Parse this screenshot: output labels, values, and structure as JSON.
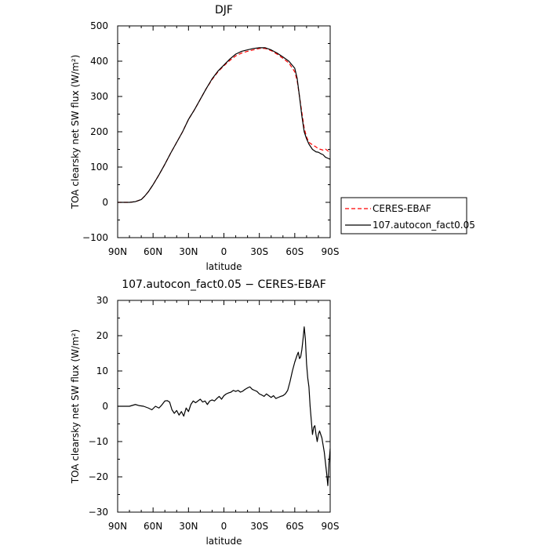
{
  "chart_data": [
    {
      "type": "line",
      "title": "DJF",
      "xlabel": "latitude",
      "ylabel": "TOA clearsky net SW flux (W/m²)",
      "xlim": [
        90,
        -90
      ],
      "ylim": [
        -100,
        500
      ],
      "xticks": [
        90,
        60,
        30,
        0,
        -30,
        -60,
        -90
      ],
      "xtick_labels": [
        "90N",
        "60N",
        "30N",
        "0",
        "30S",
        "60S",
        "90S"
      ],
      "yticks": [
        -100,
        0,
        100,
        200,
        300,
        400,
        500
      ],
      "ytick_labels": [
        "−100",
        "0",
        "100",
        "200",
        "300",
        "400",
        "500"
      ],
      "legend": {
        "placement": "right",
        "entries": [
          {
            "label": "CERES-EBAF",
            "color": "#ff0000",
            "dash": "dashed"
          },
          {
            "label": "107.autocon_fact0.05",
            "color": "#000000",
            "dash": "solid"
          }
        ]
      },
      "series": [
        {
          "name": "CERES-EBAF",
          "color": "#ff0000",
          "dash": "dashed",
          "x": [
            90,
            80,
            75,
            70,
            67,
            64,
            60,
            55,
            50,
            45,
            40,
            35,
            30,
            25,
            20,
            15,
            10,
            5,
            0,
            -5,
            -10,
            -15,
            -20,
            -25,
            -30,
            -35,
            -40,
            -45,
            -50,
            -55,
            -60,
            -62,
            -64,
            -66,
            -68,
            -70,
            -72,
            -75,
            -78,
            -80,
            -82,
            -84,
            -86,
            -88,
            -90
          ],
          "y": [
            0,
            0,
            2,
            8,
            18,
            30,
            50,
            78,
            108,
            140,
            170,
            200,
            235,
            262,
            292,
            322,
            348,
            370,
            387,
            402,
            415,
            423,
            428,
            432,
            436,
            436,
            430,
            420,
            408,
            395,
            370,
            345,
            300,
            255,
            210,
            185,
            170,
            163,
            157,
            152,
            150,
            148,
            151,
            146,
            140
          ]
        },
        {
          "name": "107.autocon_fact0.05",
          "color": "#000000",
          "dash": "solid",
          "x": [
            90,
            80,
            75,
            70,
            67,
            64,
            60,
            55,
            50,
            45,
            40,
            35,
            30,
            25,
            20,
            15,
            10,
            5,
            0,
            -5,
            -10,
            -15,
            -20,
            -25,
            -30,
            -35,
            -40,
            -45,
            -50,
            -55,
            -60,
            -62,
            -64,
            -66,
            -68,
            -70,
            -72,
            -75,
            -78,
            -80,
            -82,
            -84,
            -86,
            -88,
            -90
          ],
          "y": [
            0,
            0,
            2,
            8,
            18,
            30,
            50,
            78,
            108,
            140,
            170,
            200,
            235,
            262,
            292,
            322,
            350,
            372,
            389,
            406,
            420,
            428,
            432,
            436,
            438,
            438,
            432,
            423,
            412,
            400,
            380,
            352,
            300,
            245,
            200,
            180,
            165,
            150,
            143,
            142,
            138,
            135,
            128,
            125,
            122
          ]
        }
      ]
    },
    {
      "type": "line",
      "title": "107.autocon_fact0.05 − CERES-EBAF",
      "xlabel": "latitude",
      "ylabel": "TOA clearsky net SW flux (W/m²)",
      "xlim": [
        90,
        -90
      ],
      "ylim": [
        -30,
        30
      ],
      "xticks": [
        90,
        60,
        30,
        0,
        -30,
        -60,
        -90
      ],
      "xtick_labels": [
        "90N",
        "60N",
        "30N",
        "0",
        "30S",
        "60S",
        "90S"
      ],
      "yticks": [
        -30,
        -20,
        -10,
        0,
        10,
        20,
        30
      ],
      "ytick_labels": [
        "−30",
        "−20",
        "−10",
        "0",
        "10",
        "20",
        "30"
      ],
      "series": [
        {
          "color": "#000000",
          "dash": "solid",
          "x": [
            90,
            85,
            80,
            75,
            72,
            68,
            64,
            61,
            58,
            55,
            53,
            50,
            48,
            46,
            44,
            42,
            40,
            38,
            36,
            34,
            32,
            30,
            28,
            26,
            24,
            22,
            20,
            18,
            16,
            14,
            12,
            10,
            8,
            6,
            4,
            2,
            0,
            -2,
            -4,
            -6,
            -8,
            -10,
            -12,
            -14,
            -16,
            -18,
            -20,
            -22,
            -24,
            -26,
            -28,
            -30,
            -32,
            -34,
            -36,
            -38,
            -40,
            -42,
            -44,
            -46,
            -48,
            -50,
            -52,
            -54,
            -56,
            -58,
            -60,
            -62,
            -63,
            -64,
            -65,
            -66,
            -67,
            -68,
            -69,
            -70,
            -71,
            -72,
            -73,
            -74,
            -75,
            -76,
            -77,
            -78,
            -79,
            -80,
            -81,
            -82,
            -83,
            -84,
            -85,
            -86,
            -87,
            -88,
            -89,
            -90
          ],
          "y": [
            0,
            0,
            0,
            0.5,
            0.2,
            0,
            -0.5,
            -1,
            0,
            -0.5,
            0.2,
            1.5,
            1.6,
            1.2,
            -1,
            -2,
            -1.2,
            -2.5,
            -1.5,
            -2.8,
            -0.5,
            -1.5,
            0.5,
            1.5,
            1,
            1.5,
            2,
            1.2,
            1.5,
            0.5,
            1.5,
            1.8,
            1.5,
            2.2,
            2.8,
            2,
            3,
            3.5,
            3.8,
            4,
            4.5,
            4.2,
            4.5,
            4,
            4.3,
            4.8,
            5.2,
            5.5,
            4.8,
            4.5,
            4.2,
            3.5,
            3.2,
            2.8,
            3.5,
            3,
            2.5,
            3,
            2.2,
            2.5,
            2.8,
            3,
            3.5,
            4.5,
            7,
            10,
            12.5,
            14.5,
            15.3,
            13.5,
            14,
            16,
            19,
            22.5,
            19,
            12,
            8,
            5.5,
            0,
            -4,
            -8,
            -6,
            -5.5,
            -8,
            -10,
            -8,
            -7,
            -8,
            -9,
            -11,
            -13,
            -16,
            -19,
            -22.5,
            -16,
            -12
          ]
        }
      ]
    }
  ]
}
